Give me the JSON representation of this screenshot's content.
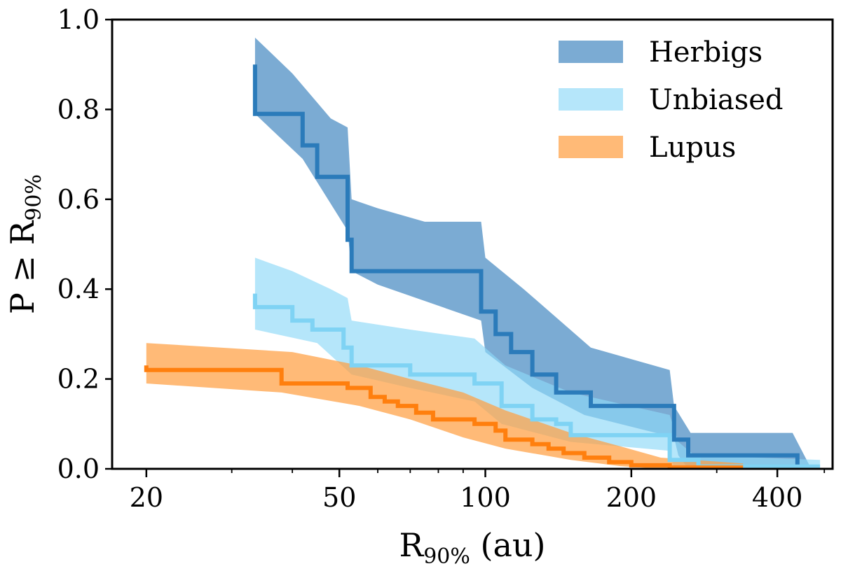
{
  "chart_data": {
    "type": "line",
    "x_scale": "log",
    "xlim": [
      17,
      520
    ],
    "ylim": [
      0.0,
      1.0
    ],
    "x_ticks": [
      20,
      50,
      100,
      200,
      400
    ],
    "x_tick_labels": [
      "20",
      "50",
      "100",
      "200",
      "400"
    ],
    "y_ticks": [
      0.0,
      0.2,
      0.4,
      0.6,
      0.8,
      1.0
    ],
    "y_tick_labels": [
      "0.0",
      "0.2",
      "0.4",
      "0.6",
      "0.8",
      "1.0"
    ],
    "xlabel": {
      "main": "R",
      "sub": "90%",
      "suffix": " (au)"
    },
    "ylabel": {
      "main": "P ≥ R",
      "sub": "90%"
    },
    "legend_position": "top-right",
    "series": [
      {
        "name": "Herbigs",
        "line_color": "#2b7bba",
        "band_color": "#4f8fc4",
        "band_opacity": 0.75,
        "line": [
          [
            33.5,
            0.9
          ],
          [
            33.5,
            0.79
          ],
          [
            42,
            0.79
          ],
          [
            42,
            0.72
          ],
          [
            45,
            0.72
          ],
          [
            45,
            0.65
          ],
          [
            52,
            0.65
          ],
          [
            52,
            0.51
          ],
          [
            53,
            0.51
          ],
          [
            53,
            0.44
          ],
          [
            98,
            0.44
          ],
          [
            98,
            0.35
          ],
          [
            105,
            0.35
          ],
          [
            105,
            0.3
          ],
          [
            113,
            0.3
          ],
          [
            113,
            0.26
          ],
          [
            125,
            0.26
          ],
          [
            125,
            0.21
          ],
          [
            140,
            0.21
          ],
          [
            140,
            0.17
          ],
          [
            165,
            0.17
          ],
          [
            165,
            0.14
          ],
          [
            245,
            0.14
          ],
          [
            245,
            0.065
          ],
          [
            262,
            0.065
          ],
          [
            262,
            0.03
          ],
          [
            440,
            0.03
          ],
          [
            440,
            0.0
          ]
        ],
        "band_upper": [
          [
            33.5,
            0.96
          ],
          [
            40,
            0.88
          ],
          [
            48,
            0.78
          ],
          [
            52,
            0.76
          ],
          [
            53,
            0.6
          ],
          [
            60,
            0.58
          ],
          [
            75,
            0.55
          ],
          [
            98,
            0.55
          ],
          [
            100,
            0.47
          ],
          [
            120,
            0.4
          ],
          [
            165,
            0.27
          ],
          [
            240,
            0.22
          ],
          [
            245,
            0.14
          ],
          [
            265,
            0.08
          ],
          [
            430,
            0.08
          ],
          [
            470,
            0.0
          ]
        ],
        "band_lower": [
          [
            33.5,
            0.79
          ],
          [
            42,
            0.69
          ],
          [
            52,
            0.53
          ],
          [
            53,
            0.44
          ],
          [
            60,
            0.41
          ],
          [
            98,
            0.33
          ],
          [
            100,
            0.26
          ],
          [
            125,
            0.18
          ],
          [
            160,
            0.12
          ],
          [
            245,
            0.07
          ],
          [
            250,
            0.03
          ],
          [
            262,
            0.0
          ],
          [
            470,
            0.0
          ]
        ]
      },
      {
        "name": "Unbiased",
        "line_color": "#7fd3f4",
        "band_color": "#8ed9f8",
        "band_opacity": 0.65,
        "line": [
          [
            33.5,
            0.39
          ],
          [
            33.5,
            0.36
          ],
          [
            40,
            0.36
          ],
          [
            40,
            0.33
          ],
          [
            44,
            0.33
          ],
          [
            44,
            0.31
          ],
          [
            51,
            0.31
          ],
          [
            51,
            0.27
          ],
          [
            53,
            0.27
          ],
          [
            53,
            0.23
          ],
          [
            70,
            0.23
          ],
          [
            70,
            0.21
          ],
          [
            95,
            0.21
          ],
          [
            95,
            0.19
          ],
          [
            108,
            0.19
          ],
          [
            108,
            0.14
          ],
          [
            125,
            0.14
          ],
          [
            125,
            0.11
          ],
          [
            140,
            0.11
          ],
          [
            140,
            0.1
          ],
          [
            150,
            0.1
          ],
          [
            150,
            0.075
          ],
          [
            240,
            0.075
          ],
          [
            240,
            0.02
          ],
          [
            275,
            0.02
          ],
          [
            275,
            0.005
          ],
          [
            490,
            0.005
          ]
        ],
        "band_upper": [
          [
            33.5,
            0.47
          ],
          [
            40,
            0.44
          ],
          [
            48,
            0.4
          ],
          [
            52,
            0.38
          ],
          [
            53,
            0.33
          ],
          [
            70,
            0.31
          ],
          [
            95,
            0.29
          ],
          [
            110,
            0.23
          ],
          [
            150,
            0.17
          ],
          [
            240,
            0.12
          ],
          [
            250,
            0.06
          ],
          [
            270,
            0.03
          ],
          [
            490,
            0.02
          ]
        ],
        "band_lower": [
          [
            33.5,
            0.31
          ],
          [
            45,
            0.28
          ],
          [
            53,
            0.21
          ],
          [
            70,
            0.18
          ],
          [
            95,
            0.15
          ],
          [
            108,
            0.1
          ],
          [
            150,
            0.06
          ],
          [
            240,
            0.04
          ],
          [
            245,
            0.0
          ],
          [
            490,
            0.0
          ]
        ]
      },
      {
        "name": "Lupus",
        "line_color": "#ff7f0e",
        "band_color": "#ff9f43",
        "band_opacity": 0.72,
        "line": [
          [
            20,
            0.23
          ],
          [
            20,
            0.22
          ],
          [
            38,
            0.22
          ],
          [
            38,
            0.19
          ],
          [
            52,
            0.19
          ],
          [
            52,
            0.18
          ],
          [
            58,
            0.18
          ],
          [
            58,
            0.16
          ],
          [
            62,
            0.16
          ],
          [
            62,
            0.15
          ],
          [
            66,
            0.15
          ],
          [
            66,
            0.14
          ],
          [
            72,
            0.14
          ],
          [
            72,
            0.125
          ],
          [
            78,
            0.125
          ],
          [
            78,
            0.11
          ],
          [
            95,
            0.11
          ],
          [
            95,
            0.1
          ],
          [
            105,
            0.1
          ],
          [
            105,
            0.085
          ],
          [
            110,
            0.085
          ],
          [
            110,
            0.065
          ],
          [
            125,
            0.065
          ],
          [
            125,
            0.055
          ],
          [
            135,
            0.055
          ],
          [
            135,
            0.045
          ],
          [
            145,
            0.045
          ],
          [
            145,
            0.035
          ],
          [
            160,
            0.035
          ],
          [
            160,
            0.025
          ],
          [
            180,
            0.025
          ],
          [
            180,
            0.015
          ],
          [
            200,
            0.015
          ],
          [
            200,
            0.008
          ],
          [
            240,
            0.008
          ],
          [
            240,
            0.003
          ],
          [
            340,
            0.003
          ]
        ],
        "band_upper": [
          [
            20,
            0.28
          ],
          [
            40,
            0.26
          ],
          [
            55,
            0.23
          ],
          [
            70,
            0.2
          ],
          [
            90,
            0.17
          ],
          [
            110,
            0.13
          ],
          [
            150,
            0.08
          ],
          [
            190,
            0.05
          ],
          [
            230,
            0.025
          ],
          [
            340,
            0.012
          ]
        ],
        "band_lower": [
          [
            20,
            0.19
          ],
          [
            38,
            0.17
          ],
          [
            55,
            0.14
          ],
          [
            70,
            0.11
          ],
          [
            90,
            0.07
          ],
          [
            110,
            0.045
          ],
          [
            150,
            0.02
          ],
          [
            190,
            0.006
          ],
          [
            230,
            0.0
          ],
          [
            340,
            0.0
          ]
        ]
      }
    ]
  }
}
